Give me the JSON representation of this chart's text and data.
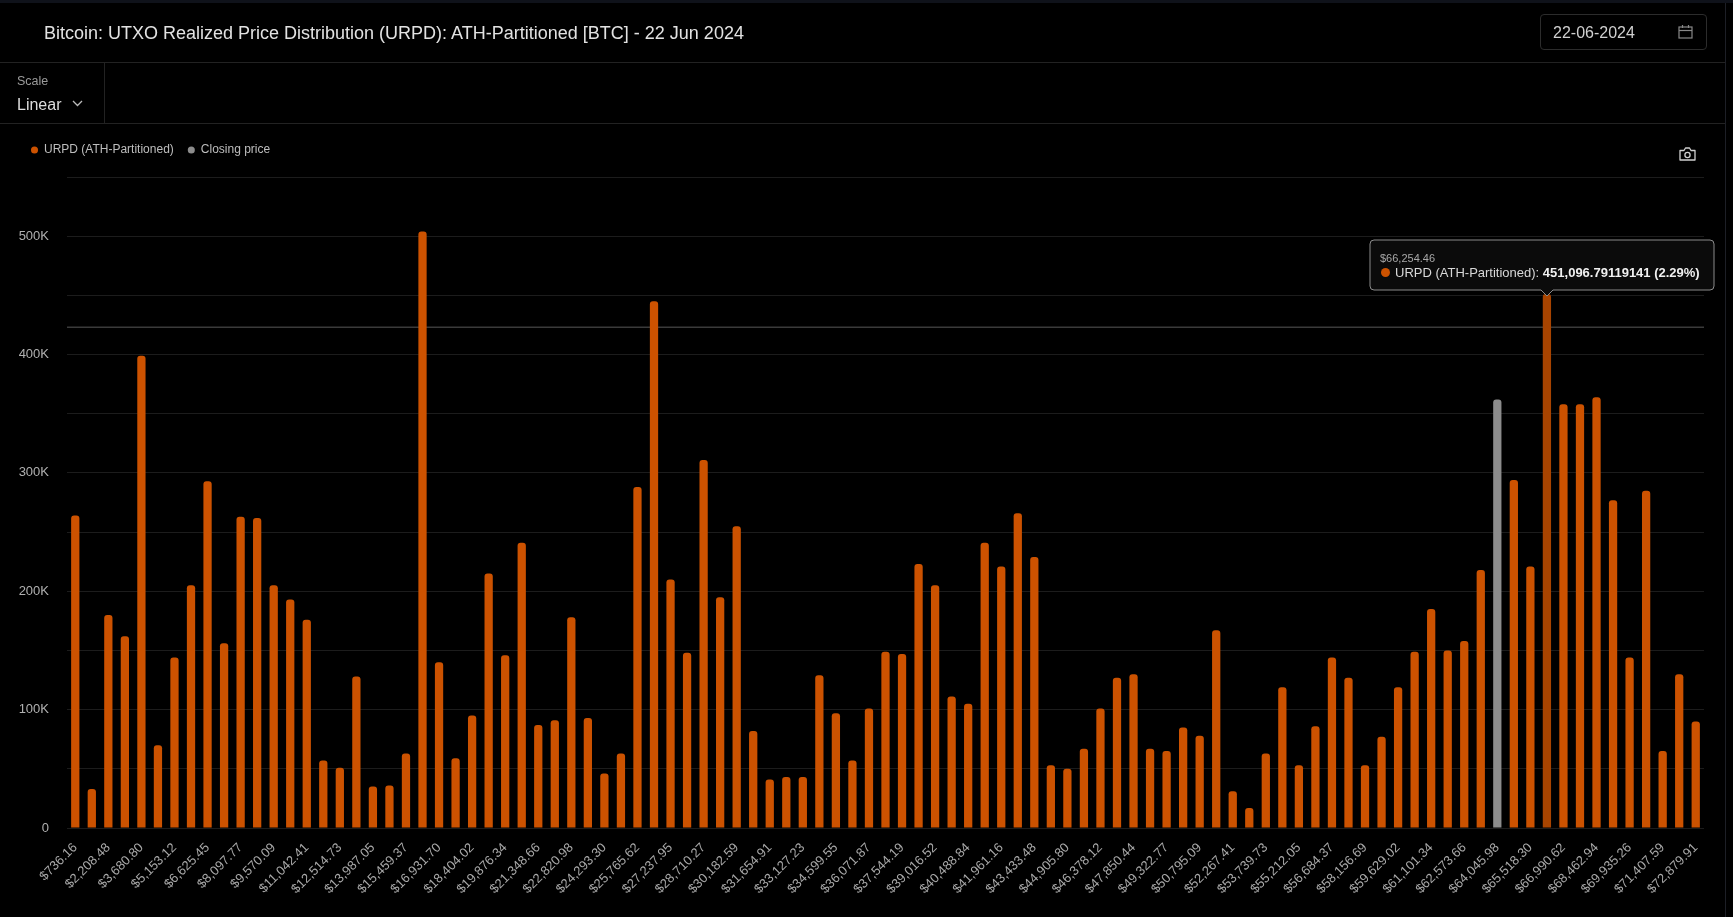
{
  "chart_data": {
    "type": "bar",
    "title": "Bitcoin: UTXO Realized Price Distribution (URPD): ATH-Partitioned [BTC] - 22 Jun 2024",
    "categories": [
      "$736.16",
      null,
      "$2,208.48",
      null,
      "$3,680.80",
      null,
      "$5,153.12",
      null,
      "$6,625.45",
      null,
      "$8,097.77",
      null,
      "$9,570.09",
      null,
      "$11,042.41",
      null,
      "$12,514.73",
      null,
      "$13,987.05",
      null,
      "$15,459.37",
      null,
      "$16,931.70",
      null,
      "$18,404.02",
      null,
      "$19,876.34",
      null,
      "$21,348.66",
      null,
      "$22,820.98",
      null,
      "$24,293.30",
      null,
      "$25,765.62",
      null,
      "$27,237.95",
      null,
      "$28,710.27",
      null,
      "$30,182.59",
      null,
      "$31,654.91",
      null,
      "$33,127.23",
      null,
      "$34,599.55",
      null,
      "$36,071.87",
      null,
      "$37,544.19",
      null,
      "$39,016.52",
      null,
      "$40,488.84",
      null,
      "$41,961.16",
      null,
      "$43,433.48",
      null,
      "$44,905.80",
      null,
      "$46,378.12",
      null,
      "$47,850.44",
      null,
      "$49,322.77",
      null,
      "$50,795.09",
      null,
      "$52,267.41",
      null,
      "$53,739.73",
      null,
      "$55,212.05",
      null,
      "$56,684.37",
      null,
      "$58,156.69",
      null,
      "$59,629.02",
      null,
      "$61,101.34",
      null,
      "$62,573.66",
      null,
      "$64,045.98",
      null,
      "$65,518.30",
      null,
      "$66,990.62",
      null,
      "$68,462.94",
      null,
      "$69,935.26",
      null,
      "$71,407.59",
      null,
      "$72,879.91"
    ],
    "series": [
      {
        "name": "URPD (ATH-Partitioned)",
        "color": "#cc5200",
        "colors": [
          "#cc5200",
          "#cc5200",
          "#cc5200",
          "#cc5200",
          "#cc5200",
          "#cc5200",
          "#cc5200",
          "#cc5200",
          "#cc5200",
          "#cc5200",
          "#cc5200",
          "#cc5200",
          "#cc5200",
          "#cc5200",
          "#cc5200",
          "#cc5200",
          "#cc5200",
          "#cc5200",
          "#cc5200",
          "#cc5200",
          "#cc5200",
          "#cc5200",
          "#cc5200",
          "#cc5200",
          "#cc5200",
          "#cc5200",
          "#cc5200",
          "#cc5200",
          "#cc5200",
          "#cc5200",
          "#cc5200",
          "#cc5200",
          "#cc5200",
          "#cc5200",
          "#cc5200",
          "#cc5200",
          "#cc5200",
          "#cc5200",
          "#cc5200",
          "#cc5200",
          "#cc5200",
          "#cc5200",
          "#cc5200",
          "#cc5200",
          "#cc5200",
          "#cc5200",
          "#cc5200",
          "#cc5200",
          "#cc5200",
          "#cc5200",
          "#cc5200",
          "#cc5200",
          "#cc5200",
          "#cc5200",
          "#cc5200",
          "#cc5200",
          "#cc5200",
          "#cc5200",
          "#cc5200",
          "#cc5200",
          "#cc5200",
          "#cc5200",
          "#cc5200",
          "#cc5200",
          "#cc5200",
          "#cc5200",
          "#cc5200",
          "#cc5200",
          "#cc5200",
          "#cc5200",
          "#cc5200",
          "#cc5200",
          "#cc5200",
          "#cc5200",
          "#cc5200",
          "#cc5200",
          "#cc5200",
          "#cc5200",
          "#cc5200",
          "#cc5200",
          "#cc5200",
          "#cc5200",
          "#cc5200",
          "#cc5200",
          "#cc5200",
          "#cc5200",
          "#cc5200",
          "#cc5200",
          "#cc5200",
          "#a84400",
          "#cc5200",
          "#cc5200",
          "#cc5200",
          "#cc5200",
          "#cc5200",
          "#cc5200",
          "#cc5200",
          "#cc5200",
          "#cc5200"
        ],
        "values": [
          264000,
          33000,
          180000,
          162000,
          399000,
          70000,
          144000,
          205000,
          293000,
          156000,
          263000,
          262000,
          205000,
          193000,
          176000,
          57000,
          51000,
          128000,
          35000,
          36000,
          63000,
          504000,
          140000,
          59000,
          95000,
          215000,
          146000,
          241000,
          87000,
          91000,
          178000,
          93000,
          46000,
          63000,
          288000,
          445000,
          210000,
          148000,
          311000,
          195000,
          255000,
          82000,
          41000,
          43000,
          43000,
          129000,
          97000,
          57000,
          101000,
          149000,
          147000,
          223000,
          205000,
          111000,
          105000,
          241000,
          221000,
          266000,
          229000,
          53000,
          50000,
          67000,
          101000,
          127000,
          130000,
          67000,
          65000,
          85000,
          78000,
          167000,
          31000,
          17000,
          63000,
          119000,
          53000,
          86000,
          144000,
          127000,
          53000,
          77000,
          119000,
          149000,
          185000,
          150000,
          158000,
          218000,
          null,
          294000,
          221000,
          451096.79119141,
          358000,
          358000,
          364000,
          277000,
          144000,
          285000,
          65000,
          130000,
          90000
        ]
      },
      {
        "name": "Closing price",
        "color": "#8c8c8c",
        "values": [
          null,
          null,
          null,
          null,
          null,
          null,
          null,
          null,
          null,
          null,
          null,
          null,
          null,
          null,
          null,
          null,
          null,
          null,
          null,
          null,
          null,
          null,
          null,
          null,
          null,
          null,
          null,
          null,
          null,
          null,
          null,
          null,
          null,
          null,
          null,
          null,
          null,
          null,
          null,
          null,
          null,
          null,
          null,
          null,
          null,
          null,
          null,
          null,
          null,
          null,
          null,
          null,
          null,
          null,
          null,
          null,
          null,
          null,
          null,
          null,
          null,
          null,
          null,
          null,
          null,
          null,
          null,
          null,
          null,
          null,
          null,
          null,
          null,
          null,
          null,
          null,
          null,
          null,
          null,
          null,
          null,
          null,
          null,
          null,
          null,
          null,
          362000,
          null,
          null,
          null,
          null,
          null,
          null,
          null,
          null,
          null,
          null,
          null,
          null
        ]
      }
    ],
    "ylim": [
      0,
      550000
    ],
    "yticks": [
      0,
      {
        "value": 50000,
        "label": null
      },
      {
        "value": 100000,
        "label": "100K"
      },
      {
        "value": 150000,
        "label": null
      },
      {
        "value": 200000,
        "label": "200K"
      },
      {
        "value": 250000,
        "label": null
      },
      {
        "value": 300000,
        "label": "300K"
      },
      {
        "value": 350000,
        "label": null
      },
      {
        "value": 400000,
        "label": "400K"
      },
      {
        "value": 450000,
        "label": null
      },
      {
        "value": 500000,
        "label": "500K"
      },
      {
        "value": 550000,
        "label": null
      }
    ],
    "grid": "y",
    "legend": "top left",
    "ref_lines": [
      {
        "axis": "y",
        "value": 423000,
        "color": "#3a3a3a"
      }
    ],
    "annotations": [
      "Scale",
      "Linear",
      "22-06-2024",
      "$66,254.46",
      "URPD (ATH-Partitioned): 451,096.79119141 (2.29%)"
    ]
  }
}
